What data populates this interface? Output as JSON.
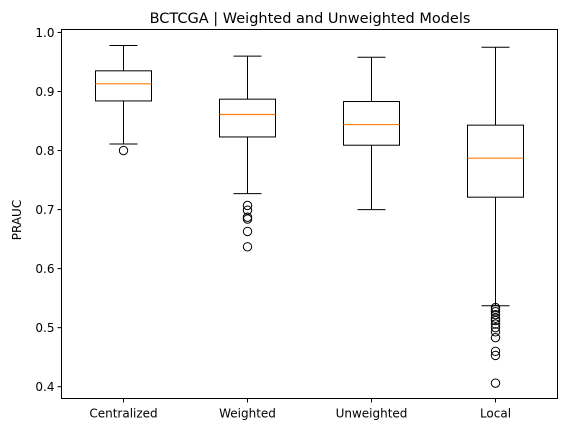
{
  "chart_data": {
    "type": "box",
    "title": "BCTCGA | Weighted and Unweighted Models",
    "xlabel": "",
    "ylabel": "PRAUC",
    "ylim": [
      0.38,
      1.005
    ],
    "yticks": [
      "0.4",
      "0.5",
      "0.6",
      "0.7",
      "0.8",
      "0.9",
      "1.0"
    ],
    "grid": false,
    "colors": {
      "box": "#000000",
      "median": "#ff7f0e",
      "background": "#ffffff"
    },
    "categories": [
      "Centralized",
      "Weighted",
      "Unweighted",
      "Local"
    ],
    "boxes": [
      {
        "label": "Centralized",
        "whisker_low": 0.811,
        "q1": 0.884,
        "median": 0.913,
        "q3": 0.935,
        "whisker_high": 0.978,
        "outliers": [
          0.8
        ]
      },
      {
        "label": "Weighted",
        "whisker_low": 0.727,
        "q1": 0.823,
        "median": 0.861,
        "q3": 0.887,
        "whisker_high": 0.96,
        "outliers": [
          0.707,
          0.699,
          0.687,
          0.684,
          0.663,
          0.637
        ]
      },
      {
        "label": "Unweighted",
        "whisker_low": 0.7,
        "q1": 0.809,
        "median": 0.844,
        "q3": 0.883,
        "whisker_high": 0.958,
        "outliers": []
      },
      {
        "label": "Local",
        "whisker_low": 0.537,
        "q1": 0.721,
        "median": 0.787,
        "q3": 0.843,
        "whisker_high": 0.975,
        "outliers": [
          0.534,
          0.531,
          0.527,
          0.522,
          0.516,
          0.512,
          0.506,
          0.5,
          0.493,
          0.483,
          0.46,
          0.453,
          0.406
        ]
      }
    ]
  }
}
